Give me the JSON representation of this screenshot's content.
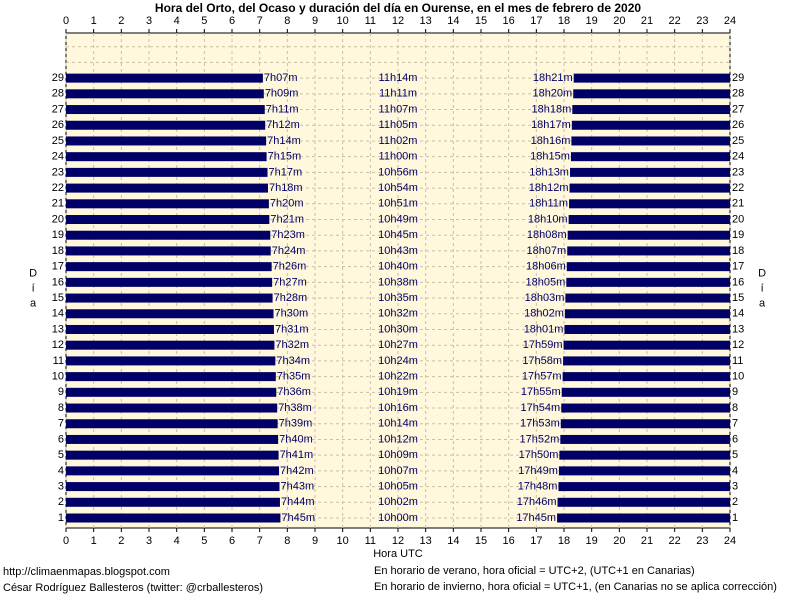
{
  "chart_data": {
    "type": "bar",
    "title": "Hora del Orto, del Ocaso y duración del día en Ourense, en el mes de febrero de 2020",
    "xlabel": "Hora UTC",
    "ylabel": "Día",
    "color": "#000066",
    "background": "#fff8dc",
    "grid": true,
    "xlim": [
      0,
      24
    ],
    "xticks": [
      0,
      1,
      2,
      3,
      4,
      5,
      6,
      7,
      8,
      9,
      10,
      11,
      12,
      13,
      14,
      15,
      16,
      17,
      18,
      19,
      20,
      21,
      22,
      23,
      24
    ],
    "categories": [
      "1",
      "2",
      "3",
      "4",
      "5",
      "6",
      "7",
      "8",
      "9",
      "10",
      "11",
      "12",
      "13",
      "14",
      "15",
      "16",
      "17",
      "18",
      "19",
      "20",
      "21",
      "22",
      "23",
      "24",
      "25",
      "26",
      "27",
      "28",
      "29"
    ],
    "sunrise": {
      "values": [
        7.75,
        7.7333,
        7.7167,
        7.7,
        7.6833,
        7.6667,
        7.65,
        7.6333,
        7.6,
        7.5833,
        7.5667,
        7.5333,
        7.5167,
        7.5,
        7.4667,
        7.45,
        7.4333,
        7.4,
        7.3833,
        7.35,
        7.3333,
        7.3,
        7.2833,
        7.25,
        7.2333,
        7.2,
        7.1833,
        7.15,
        7.1167
      ],
      "value_labels": [
        "7h45m",
        "7h44m",
        "7h43m",
        "7h42m",
        "7h41m",
        "7h40m",
        "7h39m",
        "7h38m",
        "7h36m",
        "7h35m",
        "7h34m",
        "7h32m",
        "7h31m",
        "7h30m",
        "7h28m",
        "7h27m",
        "7h26m",
        "7h24m",
        "7h23m",
        "7h21m",
        "7h20m",
        "7h18m",
        "7h17m",
        "7h15m",
        "7h14m",
        "7h12m",
        "7h11m",
        "7h09m",
        "7h07m"
      ]
    },
    "daylength": {
      "values": [
        10,
        10.0333,
        10.0833,
        10.1167,
        10.15,
        10.2,
        10.2333,
        10.2667,
        10.3167,
        10.3667,
        10.4,
        10.45,
        10.5,
        10.5333,
        10.5833,
        10.6333,
        10.6667,
        10.7167,
        10.75,
        10.8167,
        10.85,
        10.9,
        10.9333,
        11,
        11.0333,
        11.0833,
        11.1167,
        11.1833,
        11.2333
      ],
      "value_labels": [
        "10h00m",
        "10h02m",
        "10h05m",
        "10h07m",
        "10h09m",
        "10h12m",
        "10h14m",
        "10h16m",
        "10h19m",
        "10h22m",
        "10h24m",
        "10h27m",
        "10h30m",
        "10h32m",
        "10h35m",
        "10h38m",
        "10h40m",
        "10h43m",
        "10h45m",
        "10h49m",
        "10h51m",
        "10h54m",
        "10h56m",
        "11h00m",
        "11h02m",
        "11h05m",
        "11h07m",
        "11h11m",
        "11h14m"
      ]
    },
    "sunset": {
      "values": [
        17.75,
        17.7667,
        17.8,
        17.8167,
        17.8333,
        17.8667,
        17.8833,
        17.9,
        17.9167,
        17.95,
        17.9667,
        17.9833,
        18.0167,
        18.0333,
        18.05,
        18.0833,
        18.1,
        18.1167,
        18.1333,
        18.1667,
        18.1833,
        18.2,
        18.2167,
        18.25,
        18.2667,
        18.2833,
        18.3,
        18.3333,
        18.35
      ],
      "value_labels": [
        "17h45m",
        "17h46m",
        "17h48m",
        "17h49m",
        "17h50m",
        "17h52m",
        "17h53m",
        "17h54m",
        "17h55m",
        "17h57m",
        "17h58m",
        "17h59m",
        "18h01m",
        "18h02m",
        "18h03m",
        "18h05m",
        "18h06m",
        "18h07m",
        "18h08m",
        "18h10m",
        "18h11m",
        "18h12m",
        "18h13m",
        "18h15m",
        "18h16m",
        "18h17m",
        "18h18m",
        "18h20m",
        "18h21m"
      ]
    },
    "footer": {
      "left": [
        "http://climaenmapas.blogspot.com",
        "César Rodríguez Ballesteros (twitter: @crballesteros)"
      ],
      "right": [
        "En horario de verano, hora oficial = UTC+2, (UTC+1 en Canarias)",
        "En horario de invierno, hora oficial = UTC+1, (en Canarias no se aplica corrección)"
      ]
    }
  }
}
